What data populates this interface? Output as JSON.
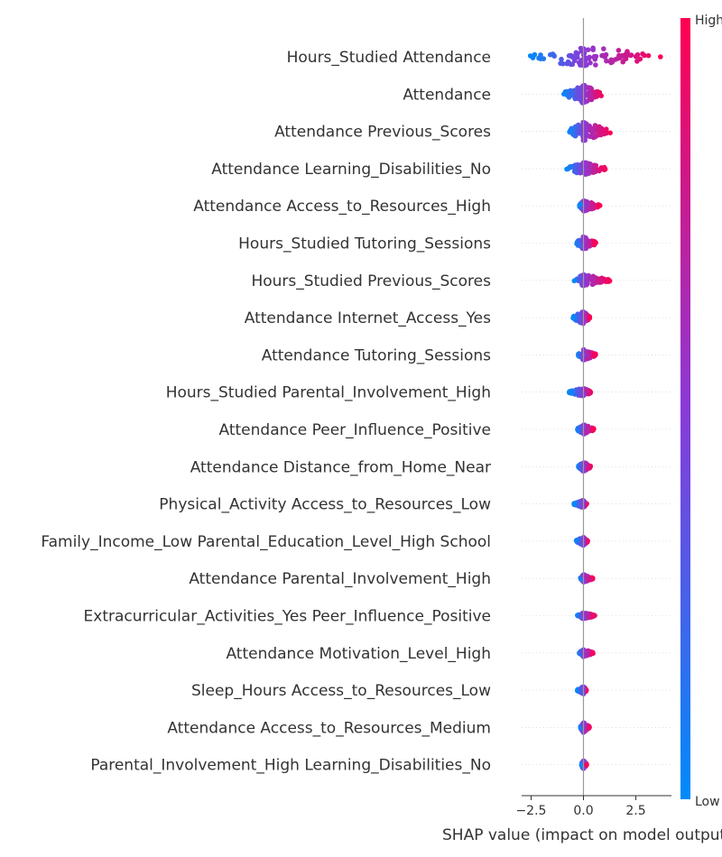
{
  "chart_data": {
    "type": "scatter",
    "subtype": "shap-beeswarm",
    "title": "",
    "xlabel": "SHAP value (impact on model output)",
    "xlim": [
      -2.95,
      4.2
    ],
    "xticks": [
      {
        "value": -2.5,
        "label": "−2.5"
      },
      {
        "value": 0.0,
        "label": "0.0"
      },
      {
        "value": 2.5,
        "label": "2.5"
      }
    ],
    "colorbar": {
      "high_label": "High",
      "low_label": "Low",
      "low_color": "#008bfb",
      "high_color": "#ff0051",
      "mid_color": "#8a3ad8"
    },
    "features": [
      {
        "name": "Hours_Studied Attendance",
        "min": -2.6,
        "max": 3.7,
        "neg_spread": 2.6,
        "pos_spread": 3.7,
        "width": 1.0
      },
      {
        "name": "Attendance",
        "min": -1.0,
        "max": 0.9,
        "neg_spread": 1.0,
        "pos_spread": 0.9,
        "width": 0.85
      },
      {
        "name": "Attendance Previous_Scores",
        "min": -0.7,
        "max": 1.3,
        "neg_spread": 0.7,
        "pos_spread": 1.3,
        "width": 0.9
      },
      {
        "name": "Attendance Learning_Disabilities_No",
        "min": -0.8,
        "max": 1.1,
        "neg_spread": 0.8,
        "pos_spread": 1.1,
        "width": 0.6
      },
      {
        "name": "Attendance Access_to_Resources_High",
        "min": -0.2,
        "max": 0.8,
        "neg_spread": 0.2,
        "pos_spread": 0.8,
        "width": 0.5
      },
      {
        "name": "Hours_Studied Tutoring_Sessions",
        "min": -0.35,
        "max": 0.6,
        "neg_spread": 0.35,
        "pos_spread": 0.6,
        "width": 0.6
      },
      {
        "name": "Hours_Studied Previous_Scores",
        "min": -0.45,
        "max": 1.3,
        "neg_spread": 0.45,
        "pos_spread": 1.3,
        "width": 0.55
      },
      {
        "name": "Attendance Internet_Access_Yes",
        "min": -0.5,
        "max": 0.3,
        "neg_spread": 0.5,
        "pos_spread": 0.3,
        "width": 0.6
      },
      {
        "name": "Attendance Tutoring_Sessions",
        "min": -0.25,
        "max": 0.6,
        "neg_spread": 0.25,
        "pos_spread": 0.6,
        "width": 0.5
      },
      {
        "name": "Hours_Studied Parental_Involvement_High",
        "min": -0.7,
        "max": 0.35,
        "neg_spread": 0.7,
        "pos_spread": 0.35,
        "width": 0.4
      },
      {
        "name": "Attendance Peer_Influence_Positive",
        "min": -0.3,
        "max": 0.5,
        "neg_spread": 0.3,
        "pos_spread": 0.5,
        "width": 0.45
      },
      {
        "name": "Attendance Distance_from_Home_Near",
        "min": -0.25,
        "max": 0.35,
        "neg_spread": 0.25,
        "pos_spread": 0.35,
        "width": 0.45
      },
      {
        "name": "Physical_Activity Access_to_Resources_Low",
        "min": -0.45,
        "max": 0.15,
        "neg_spread": 0.45,
        "pos_spread": 0.15,
        "width": 0.35
      },
      {
        "name": "Family_Income_Low Parental_Education_Level_High School",
        "min": -0.35,
        "max": 0.2,
        "neg_spread": 0.35,
        "pos_spread": 0.2,
        "width": 0.4
      },
      {
        "name": "Attendance Parental_Involvement_High",
        "min": -0.15,
        "max": 0.45,
        "neg_spread": 0.15,
        "pos_spread": 0.45,
        "width": 0.35
      },
      {
        "name": "Extracurricular_Activities_Yes Peer_Influence_Positive",
        "min": -0.3,
        "max": 0.55,
        "neg_spread": 0.3,
        "pos_spread": 0.55,
        "width": 0.3
      },
      {
        "name": "Attendance Motivation_Level_High",
        "min": -0.2,
        "max": 0.5,
        "neg_spread": 0.2,
        "pos_spread": 0.5,
        "width": 0.35
      },
      {
        "name": "Sleep_Hours Access_to_Resources_Low",
        "min": -0.3,
        "max": 0.15,
        "neg_spread": 0.3,
        "pos_spread": 0.15,
        "width": 0.35
      },
      {
        "name": "Attendance Access_to_Resources_Medium",
        "min": -0.15,
        "max": 0.3,
        "neg_spread": 0.15,
        "pos_spread": 0.3,
        "width": 0.45
      },
      {
        "name": "Parental_Involvement_High Learning_Disabilities_No",
        "min": -0.1,
        "max": 0.15,
        "neg_spread": 0.1,
        "pos_spread": 0.15,
        "width": 0.4
      }
    ]
  }
}
